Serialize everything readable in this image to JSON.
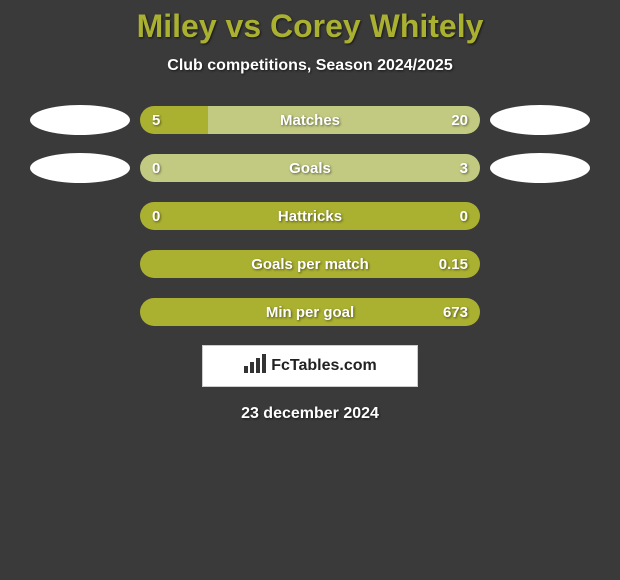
{
  "title": "Miley vs Corey Whitely",
  "subtitle": "Club competitions, Season 2024/2025",
  "date": "23 december 2024",
  "brand": "FcTables.com",
  "colors": {
    "background": "#3a3a3a",
    "accent": "#aab030",
    "bar_light": "#c2c980",
    "text": "#ffffff",
    "title": "#aab030"
  },
  "rows": [
    {
      "label": "Matches",
      "left": "5",
      "right": "20",
      "left_pct": 20,
      "right_pct": 80,
      "show_avatars": true
    },
    {
      "label": "Goals",
      "left": "0",
      "right": "3",
      "left_pct": 0,
      "right_pct": 100,
      "show_avatars": true
    },
    {
      "label": "Hattricks",
      "left": "0",
      "right": "0",
      "left_pct": 100,
      "right_pct": 0,
      "show_avatars": false
    },
    {
      "label": "Goals per match",
      "left": "",
      "right": "0.15",
      "left_pct": 100,
      "right_pct": 0,
      "show_avatars": false
    },
    {
      "label": "Min per goal",
      "left": "",
      "right": "673",
      "left_pct": 100,
      "right_pct": 0,
      "show_avatars": false
    }
  ]
}
